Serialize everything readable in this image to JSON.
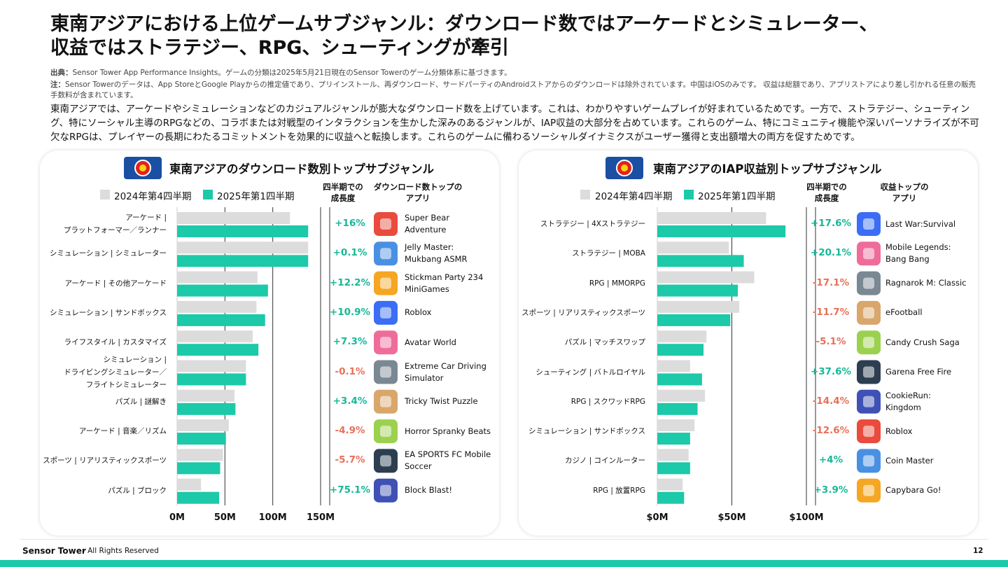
{
  "header": {
    "title": "東南アジアにおける上位ゲームサブジャンル：ダウンロード数ではアーケードとシミュレーター、\n収益ではストラテジー、RPG、シューティングが牽引",
    "source_label": "出典：",
    "source": "Sensor Tower App Performance Insights。ゲームの分類は2025年5月21日現在のSensor Towerのゲーム分類体系に基づきます。",
    "note_label": "注：",
    "note": "Sensor Towerのデータは、App StoreとGoogle Playからの推定値であり、プリインストール、再ダウンロード、サードパーティのAndroidストアからのダウンロードは除外されています。中国はiOSのみです。 収益は総額であり、アプリストアにより差し引かれる任意の販売手数料が含まれています。",
    "body": "東南アジアでは、アーケードやシミュレーションなどのカジュアルジャンルが膨大なダウンロード数を上げています。これは、わかりやすいゲームプレイが好まれているためです。一方で、ストラテジー、シューティング、特にソーシャル主導のRPGなどの、コラボまたは対戦型のインタラクションを生かした深みのあるジャンルが、IAP収益の大部分を占めています。これらのゲーム、特にコミュニティ機能や深いパーソナライズが不可欠なRPGは、プレイヤーの長期にわたるコミットメントを効果的に収益へと転換します。これらのゲームに備わるソーシャルダイナミクスがユーザー獲得と支出額増大の両方を促すためです。"
  },
  "chart_data": [
    {
      "type": "bar",
      "title": "東南アジアのダウンロード数別トップサブジャンル",
      "categories": [
        "アーケード |\nプラットフォーマー／ランナー",
        "シミュレーション | シミュレーター",
        "アーケード | その他アーケード",
        "シミュレーション | サンドボックス",
        "ライフスタイル | カスタマイズ",
        "シミュレーション |\nドライビングシミュレーター／\nフライトシミュレーター",
        "パズル | 謎解き",
        "アーケード | 音楽／リズム",
        "スポーツ | リアリスティックスポーツ",
        "パズル | ブロック"
      ],
      "series": [
        {
          "name": "2024年第4四半期",
          "color": "#dcdcdc",
          "values": [
            118,
            137,
            84,
            83,
            79,
            72,
            60,
            54,
            48,
            25
          ]
        },
        {
          "name": "2025年第1四半期",
          "color": "#1cc9a8",
          "values": [
            137,
            137,
            95,
            92,
            85,
            72,
            61,
            51,
            45,
            44
          ]
        }
      ],
      "xlim": [
        0,
        150
      ],
      "xticks": [
        {
          "value": 0,
          "label": "0M"
        },
        {
          "value": 50,
          "label": "50M"
        },
        {
          "value": 100,
          "label": "100M"
        },
        {
          "value": 150,
          "label": "150M"
        }
      ],
      "grid": true,
      "growth_header": "四半期での\n成長度",
      "growth_labels": [
        "+16%",
        "+0.1%",
        "+12.2%",
        "+10.9%",
        "+7.3%",
        "-0.1%",
        "+3.4%",
        "-4.9%",
        "-5.7%",
        "+75.1%"
      ],
      "app_header": "ダウンロード数トップの\nアプリ",
      "apps": [
        "Super Bear\nAdventure",
        "Jelly Master:\nMukbang ASMR",
        "Stickman Party 234\nMiniGames",
        "Roblox",
        "Avatar World",
        "Extreme Car Driving\nSimulator",
        "Tricky Twist Puzzle",
        "Horror Spranky Beats",
        "EA SPORTS FC Mobile\nSoccer",
        "Block Blast!"
      ]
    },
    {
      "type": "bar",
      "title": "東南アジアのIAP収益別トップサブジャンル",
      "categories": [
        "ストラテジー | 4Xストラテジー",
        "ストラテジー | MOBA",
        "RPG | MMORPG",
        "スポーツ | リアリスティックスポーツ",
        "パズル | マッチスワップ",
        "シューティング | バトルロイヤル",
        "RPG | スクワッドRPG",
        "シミュレーション | サンドボックス",
        "カジノ | コインルーター",
        "RPG | 放置RPG"
      ],
      "series": [
        {
          "name": "2024年第4四半期",
          "color": "#dcdcdc",
          "values": [
            73,
            48,
            65,
            55,
            33,
            22,
            32,
            25,
            21,
            17
          ]
        },
        {
          "name": "2025年第1四半期",
          "color": "#1cc9a8",
          "values": [
            86,
            58,
            54,
            49,
            31,
            30,
            27,
            22,
            22,
            18
          ]
        }
      ],
      "xlim": [
        0,
        100
      ],
      "xticks": [
        {
          "value": 0,
          "label": "$0M"
        },
        {
          "value": 50,
          "label": "$50M"
        },
        {
          "value": 100,
          "label": "$100M"
        }
      ],
      "grid": true,
      "growth_header": "四半期での\n成長度",
      "growth_labels": [
        "+17.6%",
        "+20.1%",
        "-17.1%",
        "-11.7%",
        "-5.1%",
        "+37.6%",
        "-14.4%",
        "-12.6%",
        "+4%",
        "+3.9%"
      ],
      "app_header": "収益トップの\nアプリ",
      "apps": [
        "Last War:Survival",
        "Mobile Legends:\nBang Bang",
        "Ragnarok M: Classic",
        "eFootball",
        "Candy Crush Saga",
        "Garena Free Fire",
        "CookieRun:\nKingdom",
        "Roblox",
        "Coin Master",
        "Capybara Go!"
      ]
    }
  ],
  "footer": {
    "brand": "Sensor Tower",
    "rights": "- All Rights Reserved",
    "page": 12
  }
}
